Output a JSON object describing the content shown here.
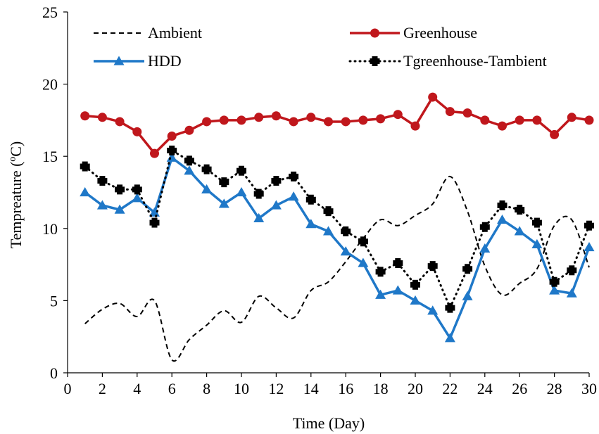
{
  "chart_data": {
    "type": "line",
    "title": "",
    "xlabel": "Time (Day)",
    "ylabel": "Tempreature (ºC)",
    "xlim": [
      0,
      30
    ],
    "ylim": [
      0,
      25
    ],
    "xticks": [
      0,
      2,
      4,
      6,
      8,
      10,
      12,
      14,
      16,
      18,
      20,
      22,
      24,
      26,
      28,
      30
    ],
    "yticks": [
      0,
      5,
      10,
      15,
      20,
      25
    ],
    "grid": false,
    "legend_position": "top",
    "x": [
      1,
      2,
      3,
      4,
      5,
      6,
      7,
      8,
      9,
      10,
      11,
      12,
      13,
      14,
      15,
      16,
      17,
      18,
      19,
      20,
      21,
      22,
      23,
      24,
      25,
      26,
      27,
      28,
      29,
      30
    ],
    "series": [
      {
        "name": "Ambient",
        "style": "dashed",
        "color": "#000000",
        "values": [
          3.4,
          4.4,
          4.8,
          3.9,
          5.0,
          0.9,
          2.3,
          3.3,
          4.3,
          3.5,
          5.3,
          4.5,
          3.8,
          5.7,
          6.3,
          7.7,
          9.3,
          10.6,
          10.2,
          10.9,
          11.7,
          13.6,
          11.2,
          7.4,
          5.4,
          6.2,
          7.2,
          10.2,
          10.6,
          7.3
        ]
      },
      {
        "name": "Greenhouse",
        "style": "solid-circle",
        "color": "#C0171C",
        "values": [
          17.8,
          17.7,
          17.4,
          16.7,
          15.2,
          16.4,
          16.8,
          17.4,
          17.5,
          17.5,
          17.7,
          17.8,
          17.4,
          17.7,
          17.4,
          17.4,
          17.5,
          17.6,
          17.9,
          17.1,
          19.1,
          18.1,
          18.0,
          17.5,
          17.1,
          17.5,
          17.5,
          16.5,
          17.7,
          17.5
        ]
      },
      {
        "name": "HDD",
        "style": "solid-triangle",
        "color": "#1F78C8",
        "values": [
          12.5,
          11.6,
          11.3,
          12.1,
          11.1,
          14.9,
          14.0,
          12.7,
          11.7,
          12.5,
          10.7,
          11.6,
          12.2,
          10.3,
          9.8,
          8.4,
          7.6,
          5.4,
          5.7,
          5.0,
          4.3,
          2.4,
          5.3,
          8.6,
          10.6,
          9.8,
          8.9,
          5.7,
          5.5,
          8.7
        ]
      },
      {
        "name": "Tgreenhouse-Tambient",
        "style": "dotted-diamond",
        "color": "#000000",
        "values": [
          14.3,
          13.3,
          12.7,
          12.7,
          10.4,
          15.4,
          14.7,
          14.1,
          13.2,
          14.0,
          12.4,
          13.3,
          13.6,
          12.0,
          11.2,
          9.8,
          9.1,
          7.0,
          7.6,
          6.1,
          7.4,
          4.5,
          7.2,
          10.1,
          11.6,
          11.3,
          10.4,
          6.3,
          7.1,
          10.2
        ]
      }
    ]
  }
}
